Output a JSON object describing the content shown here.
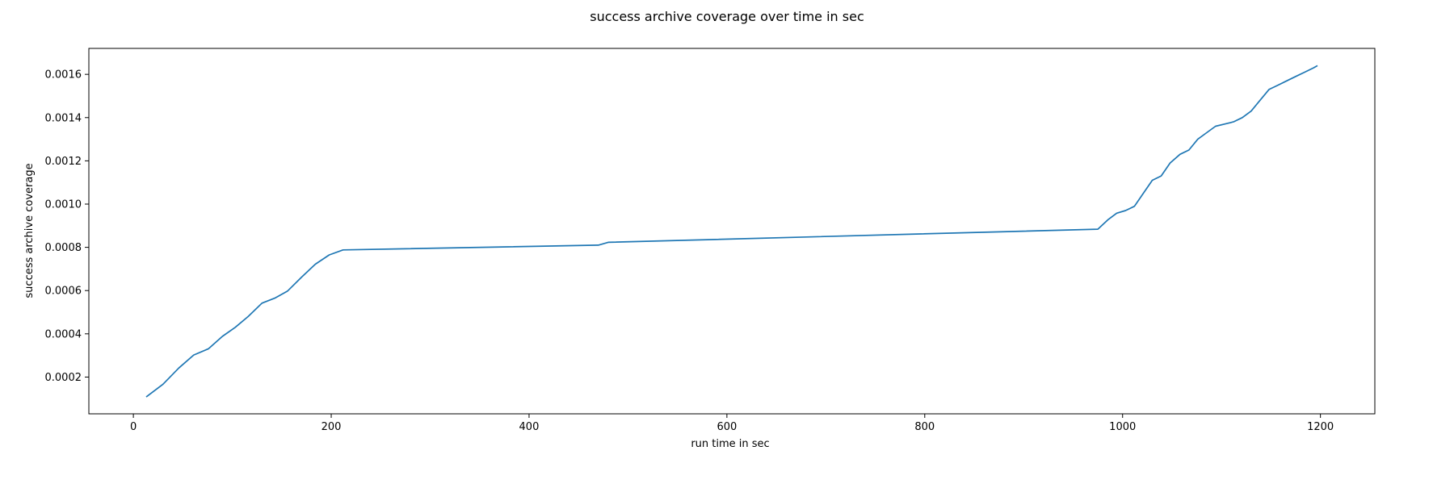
{
  "chart_data": {
    "type": "line",
    "title": "success archive coverage over time in sec",
    "xlabel": "run time in sec",
    "ylabel": "success archive coverage",
    "xlim": [
      -45,
      1255
    ],
    "ylim": [
      3e-05,
      0.00172
    ],
    "xticks": [
      0,
      200,
      400,
      600,
      800,
      1000,
      1200
    ],
    "xtick_labels": [
      "0",
      "200",
      "400",
      "600",
      "800",
      "1000",
      "1200"
    ],
    "yticks": [
      0.0002,
      0.0004,
      0.0006,
      0.0008,
      0.001,
      0.0012,
      0.0014,
      0.0016
    ],
    "ytick_labels": [
      "0.0002",
      "0.0004",
      "0.0006",
      "0.0008",
      "0.0010",
      "0.0012",
      "0.0014",
      "0.0016"
    ],
    "grid": false,
    "color": "#1f77b4",
    "series": [
      {
        "x": [
          13,
          30,
          46,
          61,
          76,
          90,
          103,
          116,
          130,
          143,
          156,
          170,
          184,
          198,
          212,
          470,
          480,
          975,
          985,
          994,
          1003,
          1012,
          1021,
          1030,
          1039,
          1048,
          1058,
          1067,
          1076,
          1085,
          1094,
          1103,
          1112,
          1121,
          1130,
          1139,
          1148,
          1157,
          1166,
          1175,
          1184,
          1193,
          1197
        ],
        "y": [
          0.000108,
          0.000167,
          0.000242,
          0.000302,
          0.000331,
          0.000388,
          0.00043,
          0.00048,
          0.000542,
          0.000565,
          0.000598,
          0.000662,
          0.000722,
          0.000765,
          0.000788,
          0.00081,
          0.000823,
          0.000884,
          0.000927,
          0.000958,
          0.00097,
          0.00099,
          0.00105,
          0.00111,
          0.00113,
          0.00119,
          0.00123,
          0.00125,
          0.0013,
          0.00133,
          0.00136,
          0.00137,
          0.00138,
          0.0014,
          0.00143,
          0.00148,
          0.00153,
          0.00155,
          0.00157,
          0.00159,
          0.00161,
          0.00163,
          0.00164
        ]
      }
    ]
  }
}
